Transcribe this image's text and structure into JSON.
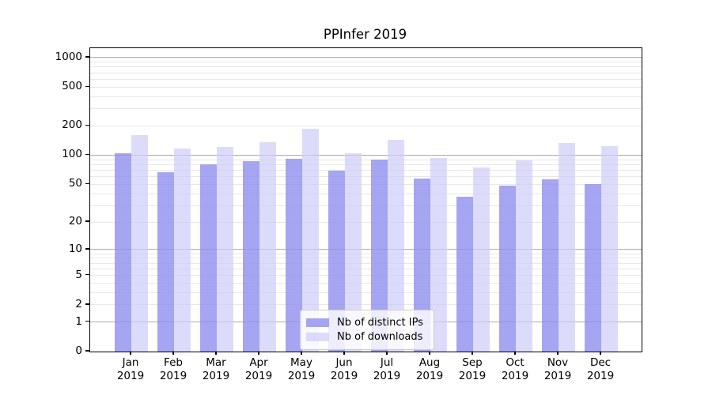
{
  "title": "PPInfer 2019",
  "legend": {
    "items": [
      {
        "key": "distinct-ips",
        "label": "Nb of distinct IPs",
        "color": "rgba(143,143,239,0.8)"
      },
      {
        "key": "downloads",
        "label": "Nb of downloads",
        "color": "rgba(205,205,248,0.7)"
      }
    ]
  },
  "colors": {
    "bar_distinct_ips": "rgba(143,143,239,0.8)",
    "bar_downloads": "rgba(205,205,248,0.7)",
    "grid_major": "#ababab",
    "grid_minor": "#e8e8e8",
    "axis": "#000000",
    "background": "#ffffff"
  },
  "chart_data": {
    "type": "bar",
    "title": "PPInfer 2019",
    "categories": [
      "Jan 2019",
      "Feb 2019",
      "Mar 2019",
      "Apr 2019",
      "May 2019",
      "Jun 2019",
      "Jul 2019",
      "Aug 2019",
      "Sep 2019",
      "Oct 2019",
      "Nov 2019",
      "Dec 2019"
    ],
    "x_tick_months": [
      "Jan",
      "Feb",
      "Mar",
      "Apr",
      "May",
      "Jun",
      "Jul",
      "Aug",
      "Sep",
      "Oct",
      "Nov",
      "Dec"
    ],
    "x_tick_year": "2019",
    "series": [
      {
        "name": "Nb of distinct IPs",
        "key": "distinct-ips",
        "color": "rgba(143,143,239,0.8)",
        "values": [
          104,
          67,
          80,
          87,
          91,
          69,
          90,
          57,
          37,
          48,
          56,
          50
        ]
      },
      {
        "name": "Nb of downloads",
        "key": "downloads",
        "color": "rgba(205,205,248,0.7)",
        "values": [
          161,
          117,
          122,
          137,
          186,
          105,
          143,
          93,
          74,
          88,
          134,
          124
        ]
      }
    ],
    "xlabel": "",
    "ylabel": "",
    "y_scale": "log1p",
    "y_ticks": [
      0,
      1,
      2,
      5,
      10,
      20,
      50,
      100,
      200,
      500,
      1000
    ],
    "y_minor_gridlines": [
      2,
      3,
      4,
      5,
      6,
      7,
      8,
      9,
      20,
      30,
      40,
      50,
      60,
      70,
      80,
      90,
      200,
      300,
      400,
      500,
      600,
      700,
      800,
      900
    ],
    "y_major_gridlines": [
      1,
      10,
      100,
      1000
    ],
    "ylim": [
      0,
      1250
    ],
    "grid": "on",
    "legend_position": "lower-center"
  }
}
